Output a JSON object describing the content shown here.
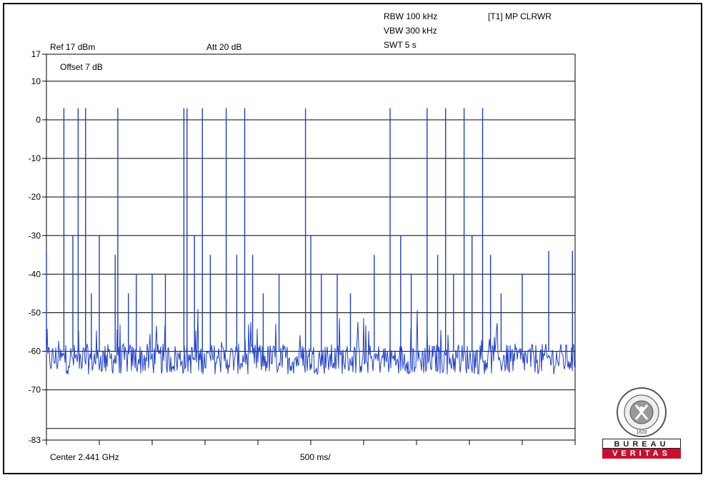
{
  "header": {
    "rbw": "RBW 100 kHz",
    "vbw": "VBW 300 kHz",
    "swt": "SWT 5 s",
    "trace": "[T1] MP CLRWR",
    "ref": "Ref 17 dBm",
    "att": "Att  20 dB",
    "offset": "Offset 7 dB",
    "center": "Center 2.441 GHz",
    "span": "500 ms/"
  },
  "logo": {
    "ring_text": "BUREAU VERITAS",
    "year": "1828",
    "word1": "BUREAU",
    "word2": "VERITAS"
  },
  "chart_data": {
    "type": "line",
    "xlabel": "",
    "ylabel": "",
    "xlim": [
      0,
      10
    ],
    "ylim": [
      -83,
      17
    ],
    "y_ticks": [
      17,
      10,
      0,
      -10,
      -20,
      -30,
      -40,
      -50,
      -60,
      -70,
      -83
    ],
    "y_tick_labels": [
      "17",
      "10",
      "0",
      "-10",
      "-20",
      "-30",
      "-40",
      "-50",
      "-60",
      "-70",
      "-83"
    ],
    "grid_lines": [
      10,
      0,
      -10,
      -20,
      -30,
      -40,
      -50,
      -60,
      -70,
      -80
    ],
    "x_divisions": 10,
    "trace_color": "#1f3fc8",
    "noise_floor_dBm": -62,
    "series": [
      {
        "peaks": [
          {
            "x": 0.0,
            "y": -34
          },
          {
            "x": 0.33,
            "y": 3
          },
          {
            "x": 0.5,
            "y": -30
          },
          {
            "x": 0.6,
            "y": 3
          },
          {
            "x": 0.74,
            "y": 3
          },
          {
            "x": 0.85,
            "y": -45
          },
          {
            "x": 1.0,
            "y": -30
          },
          {
            "x": 1.3,
            "y": -35
          },
          {
            "x": 1.35,
            "y": 3
          },
          {
            "x": 1.55,
            "y": -45
          },
          {
            "x": 1.7,
            "y": -40
          },
          {
            "x": 2.0,
            "y": -40
          },
          {
            "x": 2.25,
            "y": -40
          },
          {
            "x": 2.6,
            "y": 3
          },
          {
            "x": 2.66,
            "y": 3
          },
          {
            "x": 2.8,
            "y": -30
          },
          {
            "x": 2.95,
            "y": 3
          },
          {
            "x": 3.1,
            "y": -35
          },
          {
            "x": 3.4,
            "y": 3
          },
          {
            "x": 3.6,
            "y": -35
          },
          {
            "x": 3.75,
            "y": 3
          },
          {
            "x": 3.9,
            "y": -35
          },
          {
            "x": 4.1,
            "y": -45
          },
          {
            "x": 4.4,
            "y": -40
          },
          {
            "x": 4.9,
            "y": 3
          },
          {
            "x": 5.0,
            "y": -30
          },
          {
            "x": 5.2,
            "y": -40
          },
          {
            "x": 5.5,
            "y": -40
          },
          {
            "x": 5.75,
            "y": -45
          },
          {
            "x": 6.2,
            "y": -35
          },
          {
            "x": 6.5,
            "y": 3
          },
          {
            "x": 6.7,
            "y": -30
          },
          {
            "x": 6.9,
            "y": -40
          },
          {
            "x": 7.2,
            "y": 3
          },
          {
            "x": 7.4,
            "y": -35
          },
          {
            "x": 7.55,
            "y": 3
          },
          {
            "x": 7.7,
            "y": -40
          },
          {
            "x": 7.9,
            "y": 3
          },
          {
            "x": 8.05,
            "y": -30
          },
          {
            "x": 8.25,
            "y": 3
          },
          {
            "x": 8.4,
            "y": -35
          },
          {
            "x": 8.6,
            "y": -45
          },
          {
            "x": 9.0,
            "y": -40
          },
          {
            "x": 9.5,
            "y": -34
          },
          {
            "x": 9.95,
            "y": -34
          }
        ]
      }
    ]
  }
}
